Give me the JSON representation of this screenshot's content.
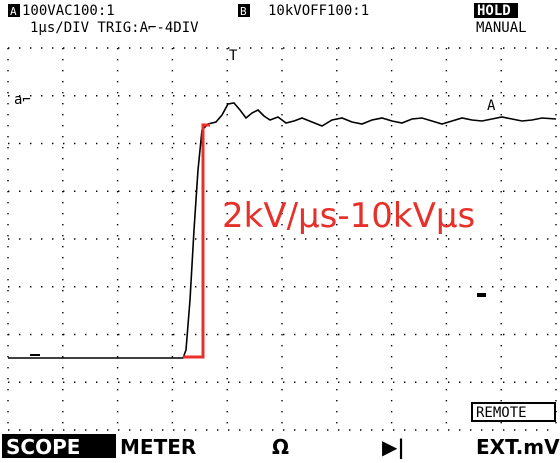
{
  "header": {
    "ch_a_label": "A",
    "ch_a_setting": "100VAC100:1",
    "ch_b_label": "B",
    "ch_b_setting": "10kVOFF100:1",
    "status": "HOLD",
    "timebase": "1μs/DIV TRIG:A⌐-4DIV",
    "mode": "MANUAL"
  },
  "markers": {
    "trigger": "T",
    "channel": "a⌐",
    "cursor": "A"
  },
  "annotation": "2kV/μs-10kVμs",
  "remote": "REMOTE",
  "softkeys": [
    "SCOPE",
    "METER",
    "Ω",
    "▶|",
    "EXT.mV"
  ]
}
